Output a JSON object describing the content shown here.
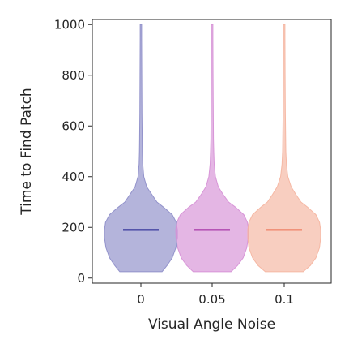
{
  "chart_data": {
    "type": "violin",
    "xlabel": "Visual Angle Noise",
    "ylabel": "Time to Find Patch",
    "ylim": [
      -20,
      1020
    ],
    "yticks": [
      0,
      200,
      400,
      600,
      800,
      1000
    ],
    "categories": [
      "0",
      "0.05",
      "0.1"
    ],
    "grid": false,
    "series": [
      {
        "category": "0",
        "median": 190,
        "fill_color": "#8c8cc8",
        "median_color": "#1a1a8c",
        "profile": [
          [
            25,
            0.58
          ],
          [
            50,
            0.72
          ],
          [
            80,
            0.86
          ],
          [
            120,
            0.96
          ],
          [
            160,
            1.0
          ],
          [
            190,
            1.0
          ],
          [
            220,
            0.97
          ],
          [
            250,
            0.86
          ],
          [
            280,
            0.62
          ],
          [
            300,
            0.44
          ],
          [
            330,
            0.3
          ],
          [
            360,
            0.16
          ],
          [
            400,
            0.08
          ],
          [
            450,
            0.05
          ],
          [
            500,
            0.04
          ],
          [
            550,
            0.035
          ],
          [
            650,
            0.03
          ],
          [
            800,
            0.025
          ],
          [
            950,
            0.02
          ],
          [
            1000,
            0.02
          ]
        ]
      },
      {
        "category": "0.05",
        "median": 190,
        "fill_color": "#d58fd5",
        "median_color": "#9a1a9a",
        "profile": [
          [
            25,
            0.52
          ],
          [
            50,
            0.7
          ],
          [
            80,
            0.85
          ],
          [
            120,
            0.95
          ],
          [
            160,
            0.99
          ],
          [
            190,
            1.0
          ],
          [
            220,
            0.97
          ],
          [
            250,
            0.87
          ],
          [
            280,
            0.64
          ],
          [
            300,
            0.45
          ],
          [
            330,
            0.3
          ],
          [
            360,
            0.17
          ],
          [
            400,
            0.09
          ],
          [
            450,
            0.055
          ],
          [
            500,
            0.045
          ],
          [
            550,
            0.035
          ],
          [
            650,
            0.03
          ],
          [
            800,
            0.025
          ],
          [
            950,
            0.02
          ],
          [
            1000,
            0.02
          ]
        ]
      },
      {
        "category": "0.1",
        "median": 190,
        "fill_color": "#f5b49e",
        "median_color": "#ec6e50",
        "profile": [
          [
            25,
            0.52
          ],
          [
            50,
            0.72
          ],
          [
            80,
            0.87
          ],
          [
            120,
            0.97
          ],
          [
            160,
            1.0
          ],
          [
            190,
            1.0
          ],
          [
            220,
            0.97
          ],
          [
            250,
            0.87
          ],
          [
            280,
            0.64
          ],
          [
            300,
            0.46
          ],
          [
            330,
            0.32
          ],
          [
            360,
            0.19
          ],
          [
            400,
            0.1
          ],
          [
            450,
            0.06
          ],
          [
            500,
            0.045
          ],
          [
            550,
            0.04
          ],
          [
            650,
            0.03
          ],
          [
            800,
            0.025
          ],
          [
            950,
            0.02
          ],
          [
            1000,
            0.02
          ]
        ]
      }
    ]
  }
}
